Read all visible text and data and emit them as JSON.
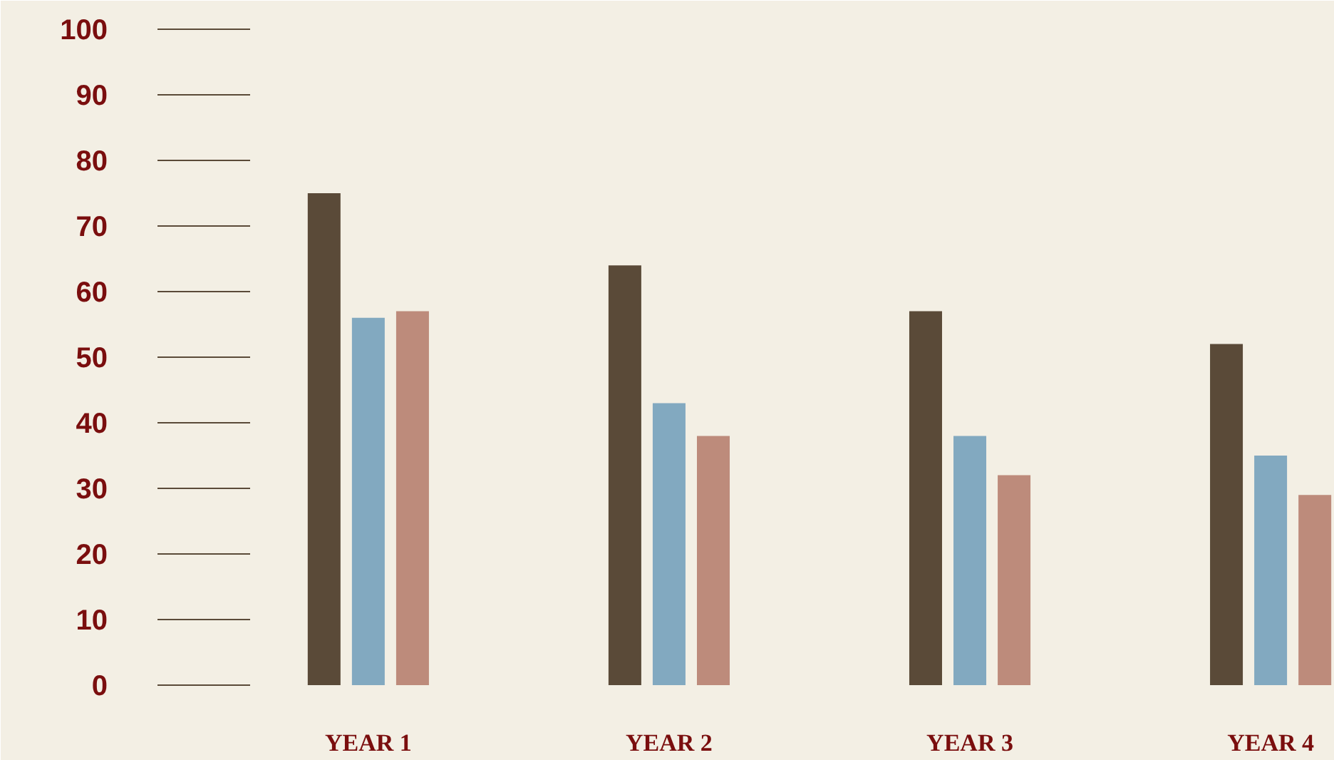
{
  "chart_data": {
    "type": "bar",
    "categories": [
      "YEAR 1",
      "YEAR 2",
      "YEAR 3",
      "YEAR 4"
    ],
    "series": [
      {
        "color": "#5a4a38",
        "values": [
          75,
          64,
          57,
          52
        ]
      },
      {
        "color": "#82a9c0",
        "values": [
          56,
          43,
          38,
          35
        ]
      },
      {
        "color": "#bd8b7b",
        "values": [
          57,
          38,
          32,
          29
        ]
      }
    ],
    "ylim": [
      0,
      100
    ],
    "yticks": [
      0,
      10,
      20,
      30,
      40,
      50,
      60,
      70,
      80,
      90,
      100
    ],
    "grid": false
  }
}
